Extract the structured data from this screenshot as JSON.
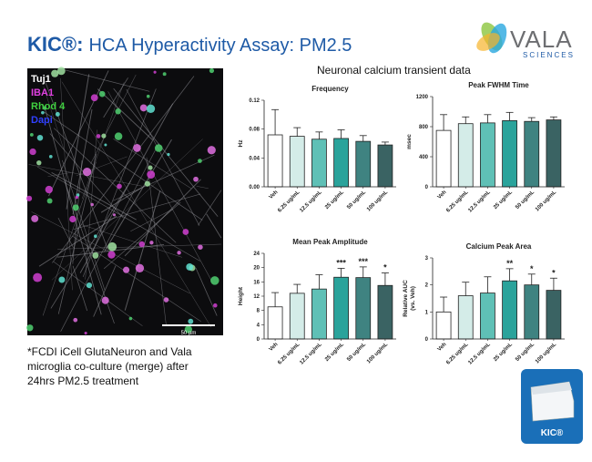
{
  "title_prefix": "KIC®:",
  "title": "HCA Hyperactivity Assay: PM2.5",
  "logo": {
    "name": "VALA",
    "tagline": "SCIENCES"
  },
  "image": {
    "labels": [
      "Tuj1",
      "IBA1",
      "Rhod 4",
      "Dapi"
    ],
    "scale_bar": "50 µm"
  },
  "caption": [
    "*FCDI iCell GlutaNeuron and Vala",
    "microglia co-culture (merge) after",
    "24hrs PM2.5 treatment"
  ],
  "section_title": "Neuronal calcium transient data",
  "device_label": "KIC®",
  "chart_data": [
    {
      "type": "bar",
      "title": "Frequency",
      "ylabel": "Hz",
      "categories": [
        "Veh",
        "6.25 ug/mL",
        "12.5 ug/mL",
        "25 ug/mL",
        "50 ug/mL",
        "100 ug/mL"
      ],
      "values": [
        0.072,
        0.07,
        0.066,
        0.067,
        0.063,
        0.058
      ],
      "errors": [
        0.035,
        0.012,
        0.01,
        0.012,
        0.008,
        0.004
      ],
      "colors": [
        "#ffffff",
        "#d4ece8",
        "#5fc0b6",
        "#2aa39b",
        "#3f8381",
        "#3a6363"
      ],
      "significance": [
        null,
        null,
        null,
        null,
        null,
        null
      ],
      "ylim": [
        0,
        0.12
      ],
      "yticks": [
        {
          "value": 0,
          "label": "0.00"
        },
        {
          "value": 0.04,
          "label": "0.04"
        },
        {
          "value": 0.08,
          "label": "0.08"
        },
        {
          "value": 0.12,
          "label": "0.12"
        }
      ]
    },
    {
      "type": "bar",
      "title": "Peak FWHM Time",
      "ylabel": "msec",
      "categories": [
        "Veh",
        "6.25 ug/mL",
        "12.5 ug/mL",
        "25 ug/mL",
        "50 ug/mL",
        "100 ug/mL"
      ],
      "values": [
        750,
        840,
        850,
        880,
        870,
        890
      ],
      "errors": [
        210,
        90,
        110,
        110,
        50,
        40
      ],
      "colors": [
        "#ffffff",
        "#d4ece8",
        "#5fc0b6",
        "#2aa39b",
        "#3f8381",
        "#3a6363"
      ],
      "significance": [
        null,
        null,
        null,
        null,
        null,
        null
      ],
      "ylim": [
        0,
        1200
      ],
      "yticks": [
        0,
        400,
        800,
        1200
      ]
    },
    {
      "type": "bar",
      "title": "Mean Peak Amplitude",
      "ylabel": "Height",
      "categories": [
        "Veh",
        "6.25 ug/mL",
        "12.5 ug/mL",
        "25 ug/mL",
        "50 ug/mL",
        "100 ug/mL"
      ],
      "values": [
        9,
        12.8,
        14,
        17.3,
        17.2,
        15
      ],
      "errors": [
        4,
        2.5,
        4,
        2.5,
        3,
        3.5
      ],
      "colors": [
        "#ffffff",
        "#d4ece8",
        "#5fc0b6",
        "#2aa39b",
        "#3f8381",
        "#3a6363"
      ],
      "significance": [
        null,
        null,
        null,
        "***",
        "***",
        "*"
      ],
      "ylim": [
        0,
        24
      ],
      "yticks": [
        0,
        4,
        8,
        12,
        16,
        20,
        24
      ]
    },
    {
      "type": "bar",
      "title": "Calcium Peak Area",
      "ylabel": [
        "Relative AUC",
        "(vs. Veh)"
      ],
      "categories": [
        "Veh",
        "6.25 ug/mL",
        "12.5 ug/mL",
        "25 ug/mL",
        "50 ug/mL",
        "100 ug/mL"
      ],
      "values": [
        1.0,
        1.6,
        1.7,
        2.15,
        2.0,
        1.8
      ],
      "errors": [
        0.55,
        0.5,
        0.6,
        0.45,
        0.4,
        0.45
      ],
      "colors": [
        "#ffffff",
        "#d4ece8",
        "#5fc0b6",
        "#2aa39b",
        "#3f8381",
        "#3a6363"
      ],
      "significance": [
        null,
        null,
        null,
        "**",
        "*",
        "*"
      ],
      "ylim": [
        0,
        3
      ],
      "yticks": [
        0,
        1,
        2,
        3
      ]
    }
  ]
}
